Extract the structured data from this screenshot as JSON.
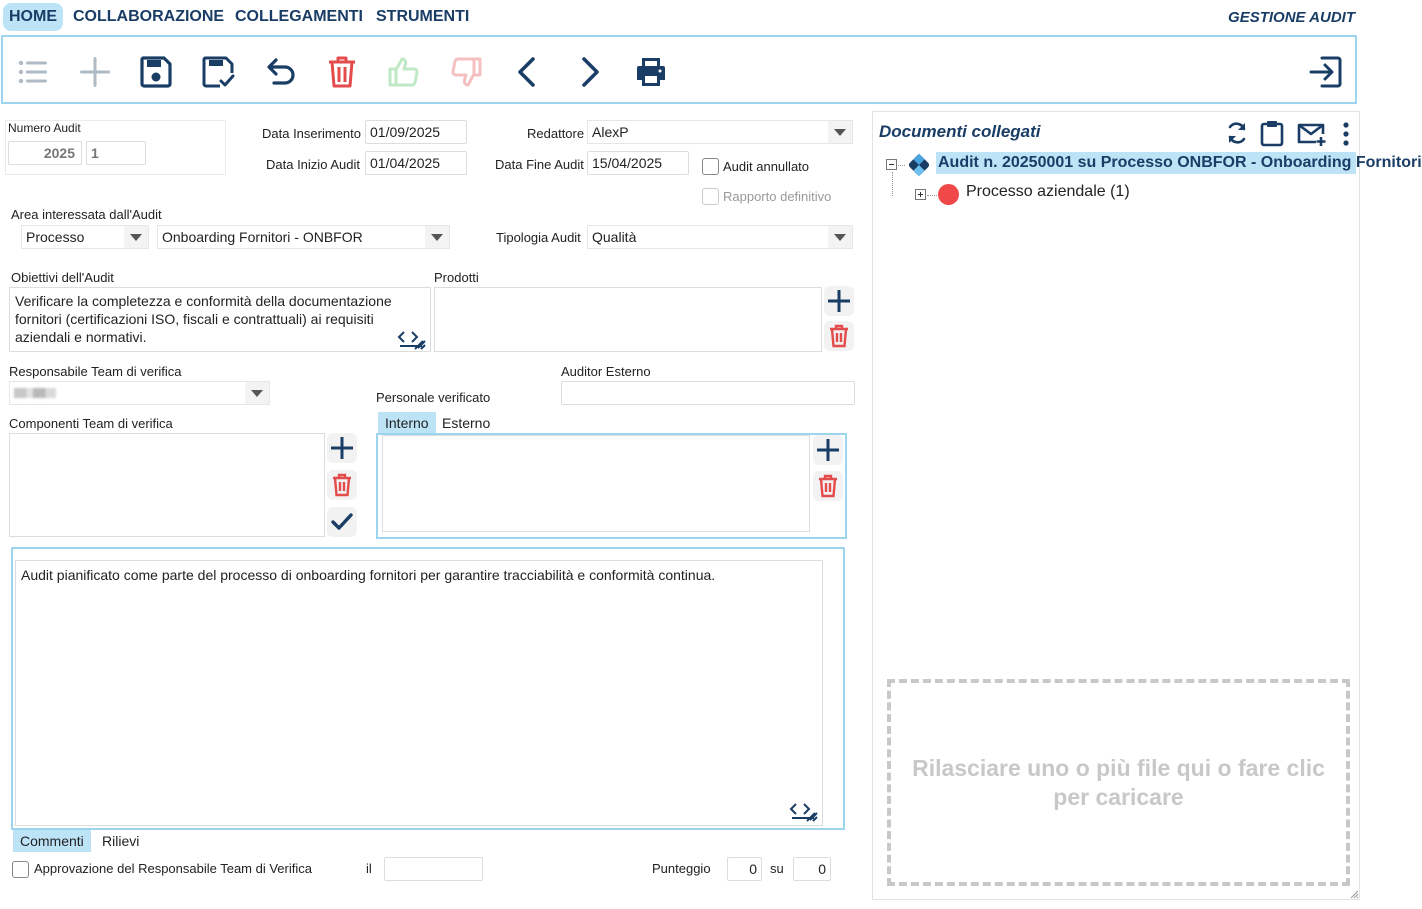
{
  "menu": {
    "items": [
      {
        "label": "HOME",
        "active": true
      },
      {
        "label": "COLLABORAZIONE",
        "active": false
      },
      {
        "label": "COLLEGAMENTI",
        "active": false
      },
      {
        "label": "STRUMENTI",
        "active": false
      }
    ],
    "app_title": "GESTIONE AUDIT"
  },
  "toolbar": {
    "buttons": [
      {
        "name": "list-icon",
        "enabled": false
      },
      {
        "name": "add-icon",
        "enabled": false
      },
      {
        "name": "save-icon",
        "enabled": true
      },
      {
        "name": "save-check-icon",
        "enabled": true
      },
      {
        "name": "undo-icon",
        "enabled": true
      },
      {
        "name": "delete-icon",
        "enabled": true
      },
      {
        "name": "thumbs-up-icon",
        "enabled": false
      },
      {
        "name": "thumbs-down-icon",
        "enabled": false
      },
      {
        "name": "previous-icon",
        "enabled": true
      },
      {
        "name": "next-icon",
        "enabled": true
      },
      {
        "name": "print-icon",
        "enabled": true
      },
      {
        "name": "exit-icon",
        "enabled": true
      }
    ]
  },
  "colors": {
    "navy": "#1a3d66",
    "red": "#e44b4b",
    "green_light": "#bfe8c4",
    "red_light": "#f5c0c0",
    "accent_light": "#bde3f7",
    "border_accent": "#9dd5ee",
    "grey_icon": "#b0bac4"
  },
  "form": {
    "numero_audit": {
      "label": "Numero Audit",
      "year": "2025",
      "number": "1"
    },
    "data_inserimento": {
      "label": "Data Inserimento",
      "value": "01/09/2025"
    },
    "data_inizio": {
      "label": "Data Inizio Audit",
      "value": "01/04/2025"
    },
    "redattore": {
      "label": "Redattore",
      "value": "AlexP"
    },
    "data_fine": {
      "label": "Data Fine Audit",
      "value": "15/04/2025"
    },
    "audit_annullato": {
      "label": "Audit annullato",
      "checked": false
    },
    "rapporto_definitivo": {
      "label": "Rapporto definitivo",
      "checked": false,
      "disabled": true
    },
    "area": {
      "label": "Area interessata dall'Audit",
      "type_value": "Processo",
      "area_value": "Onboarding Fornitori - ONBFOR"
    },
    "tipologia": {
      "label": "Tipologia Audit",
      "value": "Qualità"
    },
    "obiettivi": {
      "label": "Obiettivi dell'Audit",
      "value": "Verificare la completezza e conformità della documentazione fornitori (certificazioni ISO, fiscali e contrattuali) ai requisiti aziendali e normativi."
    },
    "prodotti": {
      "label": "Prodotti"
    },
    "responsabile": {
      "label": "Responsabile Team di verifica"
    },
    "auditor_esterno": {
      "label": "Auditor Esterno",
      "value": ""
    },
    "personale": {
      "label": "Personale verificato",
      "tabs": [
        "Interno",
        "Esterno"
      ],
      "active_tab": "Interno"
    },
    "componenti": {
      "label": "Componenti Team di verifica"
    },
    "commenti": {
      "value": "Audit pianificato come parte del processo di onboarding fornitori per garantire tracciabilità e conformità continua.",
      "tabs": [
        "Commenti",
        "Rilievi"
      ],
      "active_tab": "Commenti"
    },
    "approvazione": {
      "label": "Approvazione del Responsabile Team di Verifica",
      "checked": false,
      "il_label": "il",
      "il_value": ""
    },
    "punteggio": {
      "label": "Punteggio",
      "value": "0",
      "su_label": "su",
      "su_value": "0"
    }
  },
  "documents": {
    "title": "Documenti collegati",
    "root": "Audit n. 20250001 su Processo ONBFOR - Onboarding Fornitori",
    "child": "Processo aziendale (1)",
    "dropzone": "Rilasciare uno o più file qui o fare clic per caricare"
  }
}
